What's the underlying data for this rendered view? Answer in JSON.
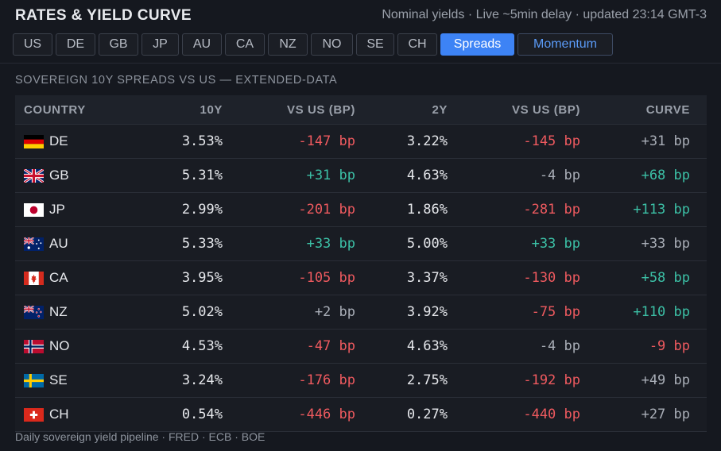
{
  "header": {
    "title": "RATES & YIELD CURVE",
    "meta": "Nominal yields · Live ~5min delay · updated 23:14 GMT-3"
  },
  "tabs": [
    {
      "label": "US",
      "state": "normal"
    },
    {
      "label": "DE",
      "state": "normal"
    },
    {
      "label": "GB",
      "state": "normal"
    },
    {
      "label": "JP",
      "state": "normal"
    },
    {
      "label": "AU",
      "state": "normal"
    },
    {
      "label": "CA",
      "state": "normal"
    },
    {
      "label": "NZ",
      "state": "normal"
    },
    {
      "label": "NO",
      "state": "normal"
    },
    {
      "label": "SE",
      "state": "normal"
    },
    {
      "label": "CH",
      "state": "normal"
    },
    {
      "label": "Spreads",
      "state": "active"
    },
    {
      "label": "Momentum",
      "state": "highlight"
    }
  ],
  "section_title": "SOVEREIGN 10Y SPREADS VS US — EXTENDED-DATA",
  "columns": [
    "COUNTRY",
    "10Y",
    "VS US (BP)",
    "2Y",
    "VS US (BP)",
    "CURVE"
  ],
  "rows": [
    {
      "code": "DE",
      "y10": "3.53%",
      "s10": "-147 bp",
      "y2": "3.22%",
      "s2": "-145 bp",
      "curve": "+31 bp"
    },
    {
      "code": "GB",
      "y10": "5.31%",
      "s10": "+31 bp",
      "y2": "4.63%",
      "s2": "-4 bp",
      "curve": "+68 bp"
    },
    {
      "code": "JP",
      "y10": "2.99%",
      "s10": "-201 bp",
      "y2": "1.86%",
      "s2": "-281 bp",
      "curve": "+113 bp"
    },
    {
      "code": "AU",
      "y10": "5.33%",
      "s10": "+33 bp",
      "y2": "5.00%",
      "s2": "+33 bp",
      "curve": "+33 bp"
    },
    {
      "code": "CA",
      "y10": "3.95%",
      "s10": "-105 bp",
      "y2": "3.37%",
      "s2": "-130 bp",
      "curve": "+58 bp"
    },
    {
      "code": "NZ",
      "y10": "5.02%",
      "s10": "+2 bp",
      "y2": "3.92%",
      "s2": "-75 bp",
      "curve": "+110 bp"
    },
    {
      "code": "NO",
      "y10": "4.53%",
      "s10": "-47 bp",
      "y2": "4.63%",
      "s2": "-4 bp",
      "curve": "-9 bp"
    },
    {
      "code": "SE",
      "y10": "3.24%",
      "s10": "-176 bp",
      "y2": "2.75%",
      "s2": "-192 bp",
      "curve": "+49 bp"
    },
    {
      "code": "CH",
      "y10": "0.54%",
      "s10": "-446 bp",
      "y2": "0.27%",
      "s2": "-440 bp",
      "curve": "+27 bp"
    }
  ],
  "footer": "Daily sovereign yield pipeline · FRED · ECB · BOE",
  "colors": {
    "accent": "#3d83f5",
    "positive": "#3cc0a6",
    "negative": "#ef5a5f",
    "neutral": "#a9aeb7",
    "background": "#15181f"
  }
}
